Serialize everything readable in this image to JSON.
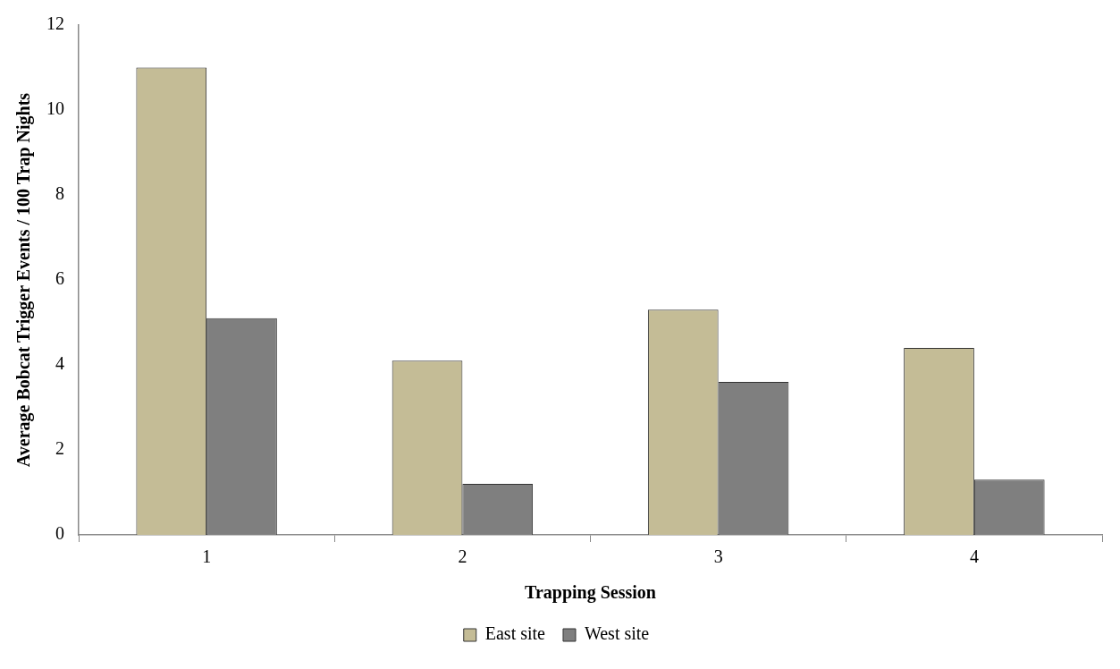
{
  "chart_data": {
    "type": "bar",
    "xlabel": "Trapping Session",
    "ylabel": "Average Bobcat Trigger Events / 100 Trap Nights",
    "categories": [
      "1",
      "2",
      "3",
      "4"
    ],
    "series": [
      {
        "name": "East site",
        "color": "#c4bc96",
        "values": [
          11.0,
          4.1,
          5.3,
          4.4
        ]
      },
      {
        "name": "West site",
        "color": "#7f7f7f",
        "values": [
          5.1,
          1.2,
          3.6,
          1.3
        ]
      }
    ],
    "ylim": [
      0,
      12
    ],
    "yticks": [
      0,
      2,
      4,
      6,
      8,
      10,
      12
    ],
    "grid": false,
    "legend": "bottom"
  }
}
